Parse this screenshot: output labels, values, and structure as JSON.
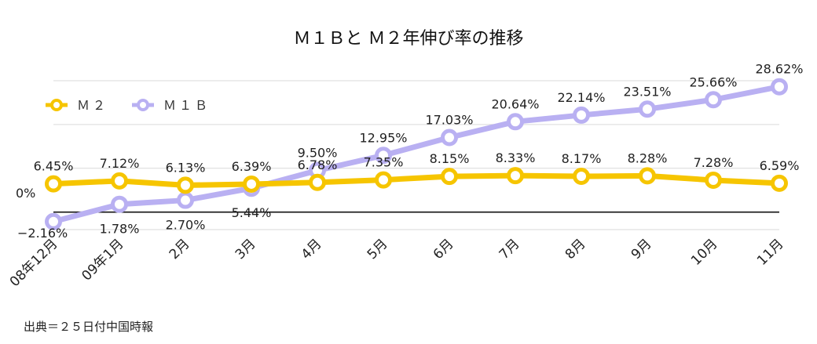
{
  "chart_data": {
    "type": "line",
    "title": "Ｍ１Ｂと Ｍ２年伸び率の推移",
    "categories": [
      "08年12月",
      "09年1月",
      "2月",
      "3月",
      "4月",
      "5月",
      "6月",
      "7月",
      "8月",
      "9月",
      "10月",
      "11月"
    ],
    "ylim": [
      -4,
      30
    ],
    "zero_label": "0%",
    "min_label": "−2.16%",
    "grid": true,
    "legend_position": "top-left",
    "series": [
      {
        "name": "Ｍ２",
        "color": "#F6C500",
        "values": [
          6.45,
          7.12,
          6.13,
          6.39,
          6.78,
          7.35,
          8.15,
          8.33,
          8.17,
          8.28,
          7.28,
          6.59
        ],
        "labels": [
          "6.45%",
          "7.12%",
          "6.13%",
          "6.39%",
          "6.78%",
          "7.35%",
          "8.15%",
          "8.33%",
          "8.17%",
          "8.28%",
          "7.28%",
          "6.59%"
        ]
      },
      {
        "name": "Ｍ１Ｂ",
        "color": "#B9B0F2",
        "values": [
          -2.16,
          1.78,
          2.7,
          5.44,
          9.5,
          12.95,
          17.03,
          20.64,
          22.14,
          23.51,
          25.66,
          28.62
        ],
        "labels": [
          "−2.16%",
          "1.78%",
          "2.70%",
          "5.44%",
          "9.50%",
          "12.95%",
          "17.03%",
          "20.64%",
          "22.14%",
          "23.51%",
          "25.66%",
          "28.62%"
        ]
      }
    ]
  },
  "source_note": "出典＝２５日付中国時報"
}
